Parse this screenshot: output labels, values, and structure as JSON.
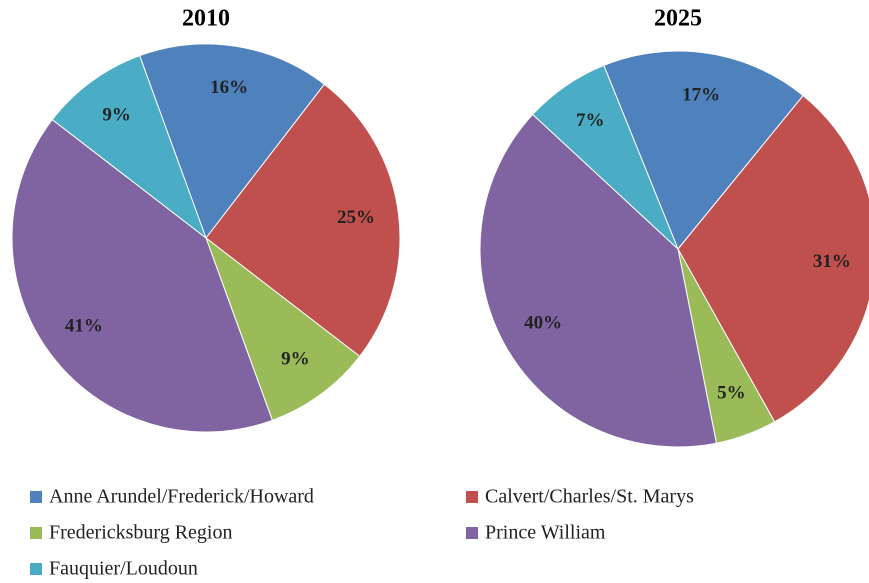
{
  "chart_data": [
    {
      "type": "pie",
      "title": "2010",
      "values": [
        16,
        25,
        9,
        41,
        9
      ],
      "value_labels": [
        "16%",
        "25%",
        "9%",
        "41%",
        "9%"
      ]
    },
    {
      "type": "pie",
      "title": "2025",
      "values": [
        17,
        31,
        5,
        40,
        7
      ],
      "value_labels": [
        "17%",
        "31%",
        "5%",
        "40%",
        "7%"
      ]
    }
  ],
  "legend": {
    "categories": [
      "Anne Arundel/Frederick/Howard",
      "Calvert/Charles/St. Marys",
      "Fredericksburg Region",
      "Prince William",
      "Fauquier/Loudoun"
    ],
    "colors": [
      "#4f81bd",
      "#c0504d",
      "#9bbb59",
      "#8064a2",
      "#4bacc6"
    ]
  }
}
